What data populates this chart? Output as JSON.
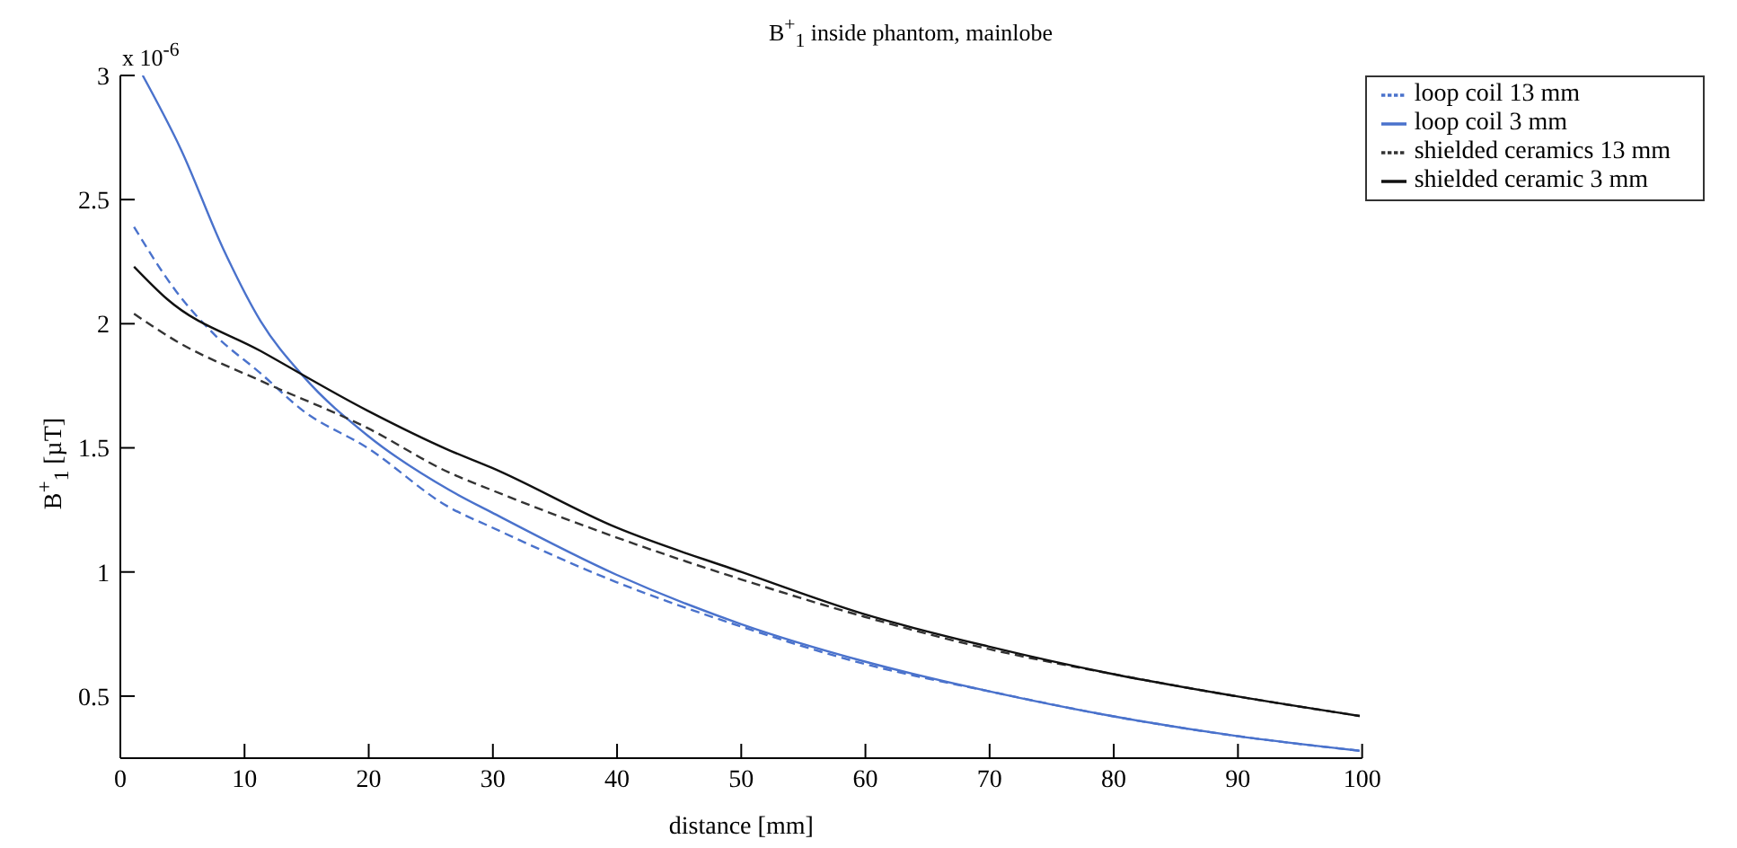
{
  "chart_data": {
    "type": "line",
    "title": "B$^{+}$$_{1}$ inside phantom, mainlobe",
    "xlabel": "distance [mm]",
    "ylabel": "B$^{+}$$_{1}$ [µT]",
    "annotations": [
      "x 10$^{-6}$"
    ],
    "xlim": [
      0,
      100
    ],
    "xticks": [
      0,
      10,
      20,
      30,
      40,
      50,
      60,
      70,
      80,
      90,
      100
    ],
    "ylim": [
      0.25,
      3
    ],
    "yticks": [
      0.5,
      1,
      1.5,
      2,
      2.5,
      3
    ],
    "grid": false,
    "legend": "top right",
    "marker": "none",
    "series": [
      {
        "name": "loop coil 13 mm",
        "color": "#4a72cc",
        "line_style": "dashed",
        "x": [
          1.1,
          4.5,
          7.5,
          11.3,
          14.7,
          19.9,
          26.5,
          29.9,
          39.9,
          50,
          59.9,
          69.9,
          79.8,
          89.8,
          99.8
        ],
        "values": [
          2.39,
          2.13,
          1.96,
          1.8,
          1.65,
          1.5,
          1.26,
          1.18,
          0.96,
          0.78,
          0.63,
          0.52,
          0.42,
          0.34,
          0.28
        ]
      },
      {
        "name": "loop coil 3 mm",
        "color": "#4a72cc",
        "line_style": "solid",
        "x": [
          1.8,
          4.9,
          8.3,
          11.3,
          14.7,
          19.9,
          26.5,
          29.9,
          39.9,
          50,
          59.9,
          69.9,
          79.8,
          89.8,
          99.8
        ],
        "values": [
          3.0,
          2.7,
          2.3,
          2.01,
          1.79,
          1.55,
          1.33,
          1.24,
          0.99,
          0.79,
          0.64,
          0.52,
          0.42,
          0.34,
          0.28
        ]
      },
      {
        "name": "shielded ceramics 13 mm",
        "color": "#333333",
        "line_style": "dashed",
        "x": [
          1.1,
          4.5,
          11.3,
          19.9,
          26.5,
          29.9,
          39.9,
          50,
          59.9,
          69.9,
          79.8,
          89.8,
          99.8
        ],
        "values": [
          2.04,
          1.93,
          1.77,
          1.58,
          1.4,
          1.33,
          1.14,
          0.97,
          0.82,
          0.69,
          0.59,
          0.5,
          0.42
        ]
      },
      {
        "name": "shielded ceramic 3 mm",
        "color": "#111111",
        "line_style": "solid",
        "x": [
          1.1,
          3.75,
          11.3,
          19.9,
          26.5,
          29.9,
          39.9,
          50,
          59.9,
          69.9,
          79.8,
          89.8,
          99.8
        ],
        "values": [
          2.23,
          2.1,
          1.89,
          1.65,
          1.49,
          1.42,
          1.18,
          1.0,
          0.83,
          0.7,
          0.59,
          0.5,
          0.42
        ]
      }
    ]
  }
}
